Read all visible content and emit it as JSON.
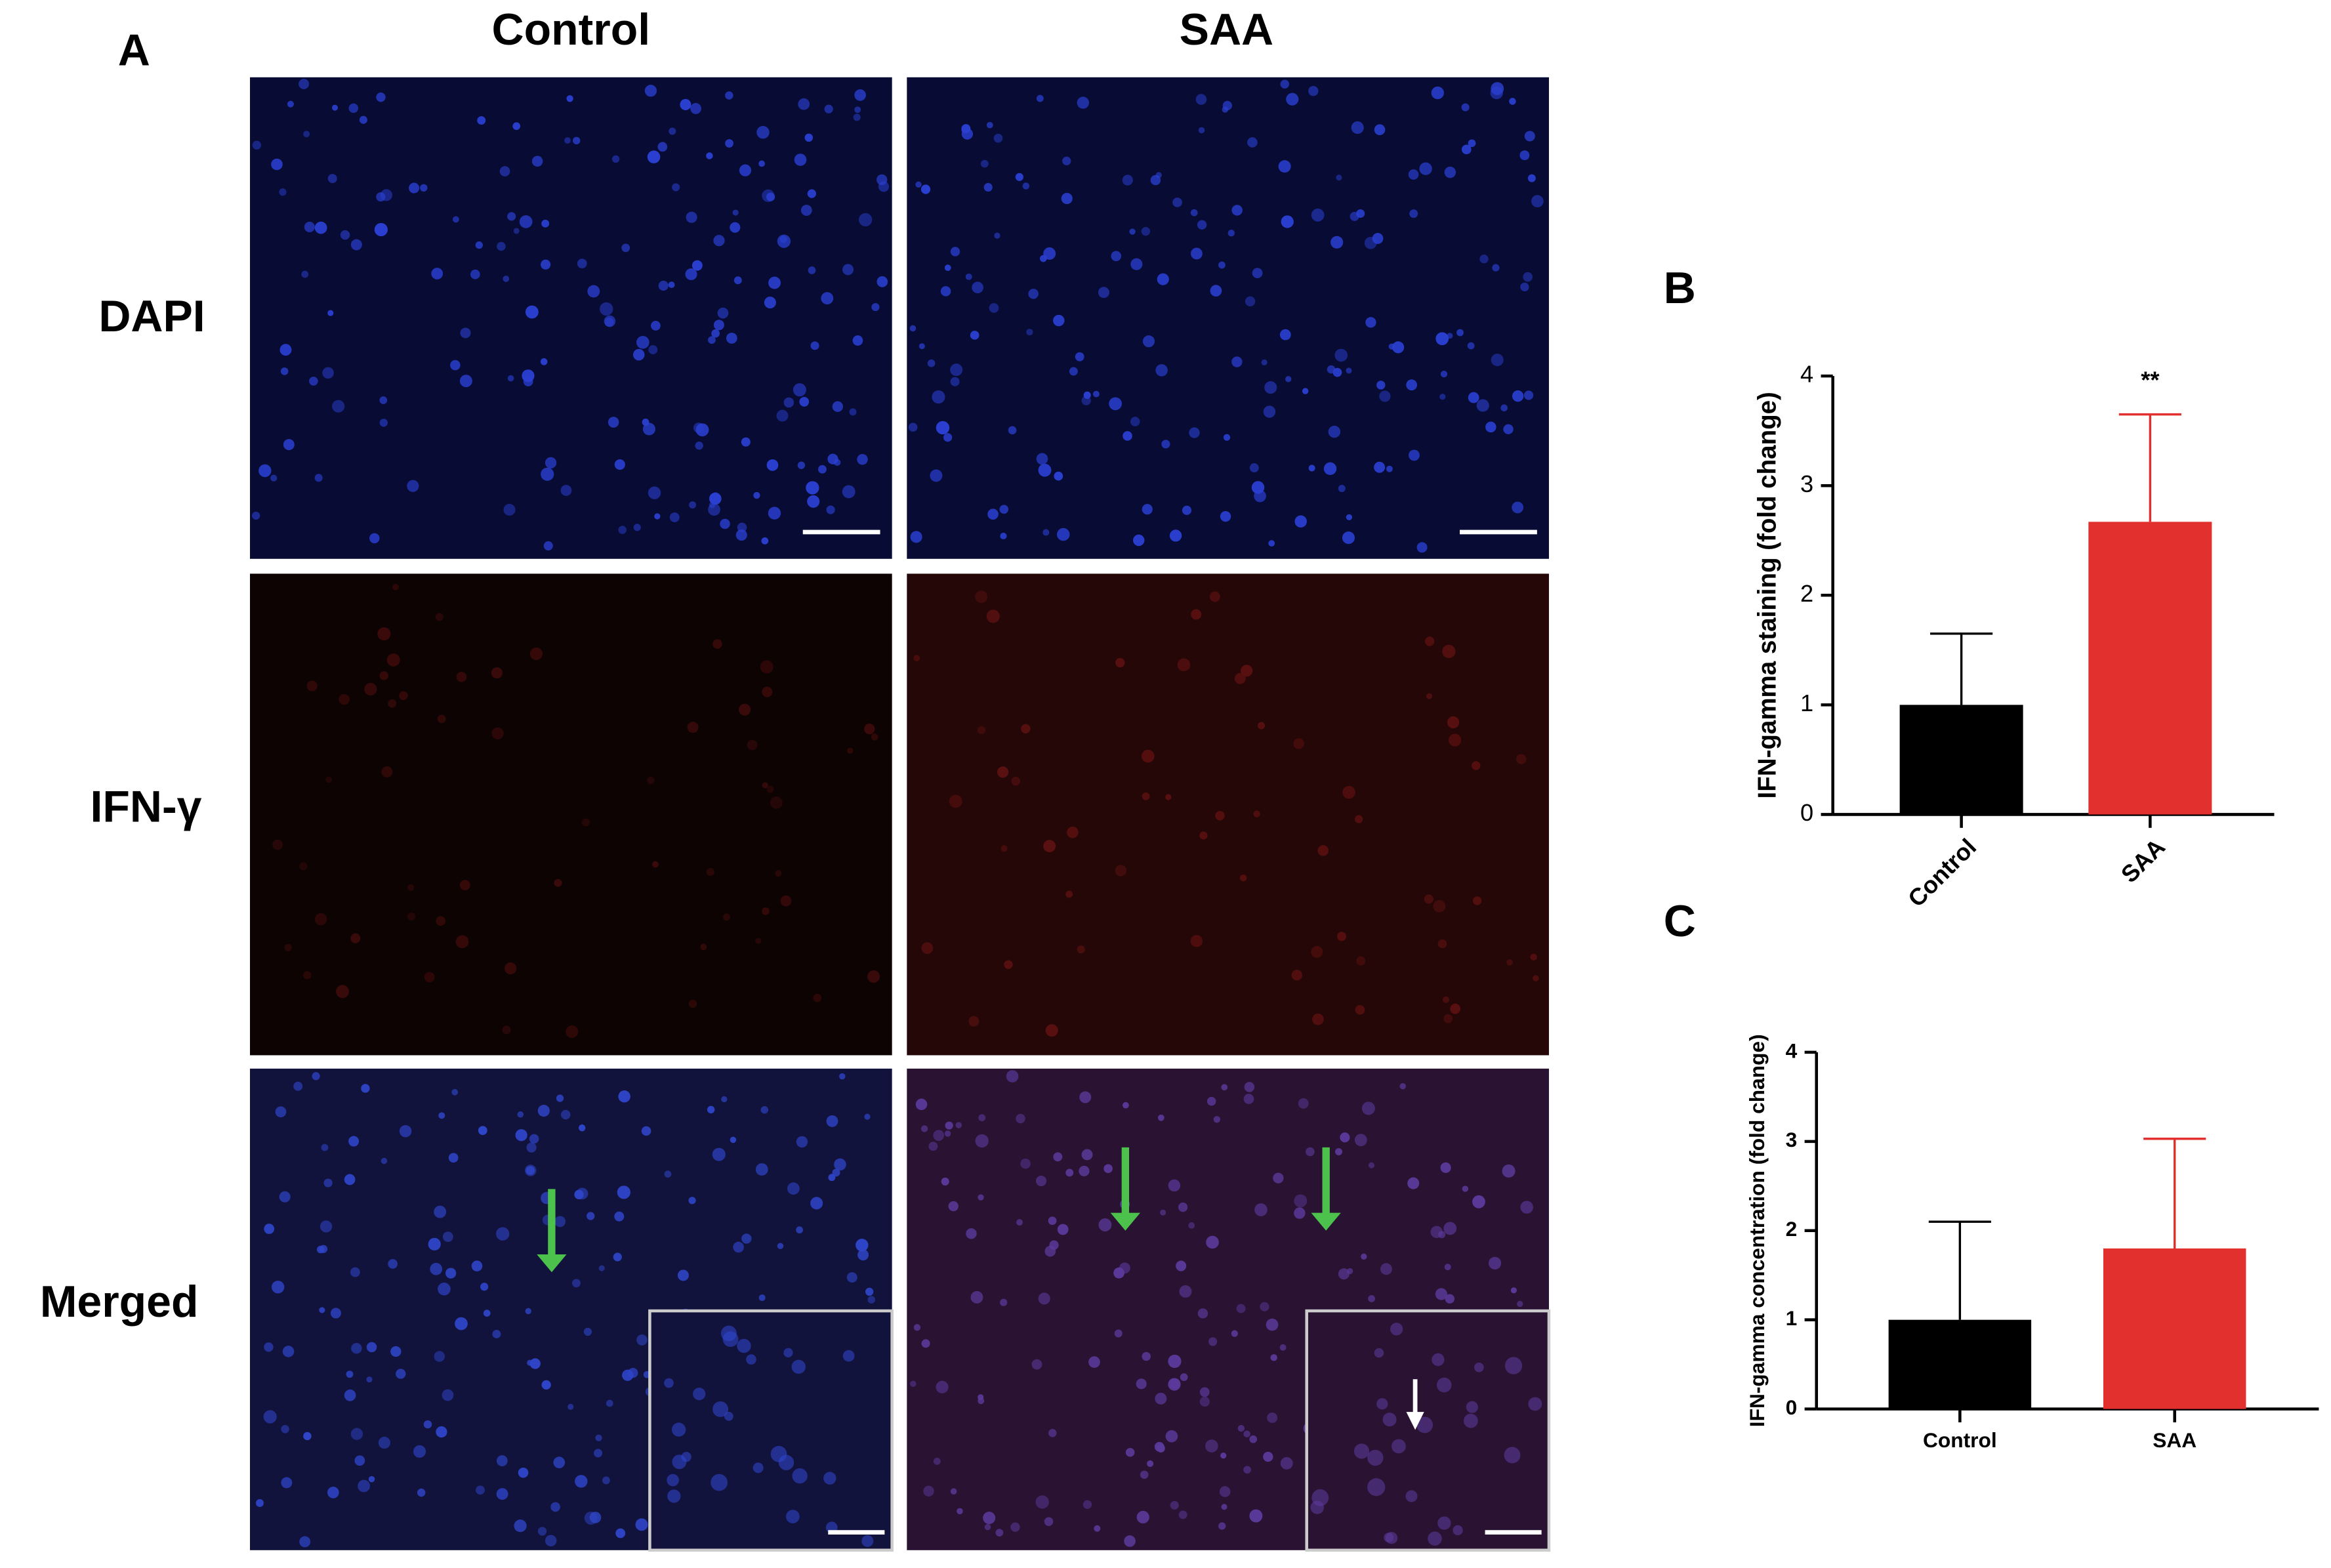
{
  "figure": {
    "panel": "A",
    "columns": [
      "Control",
      "SAA"
    ],
    "rows": [
      "DAPI",
      "IFN-γ",
      "Merged"
    ]
  },
  "chart_data": [
    {
      "type": "bar",
      "panel": "B",
      "ylabel": "IFN-gamma staining (fold change)",
      "categories": [
        "Control",
        "SAA"
      ],
      "values": [
        1.0,
        2.67
      ],
      "errors": [
        0.65,
        0.98
      ],
      "colors": [
        "#000000",
        "#e2302f"
      ],
      "significance": [
        null,
        "**"
      ],
      "ylim": [
        0,
        4
      ],
      "yticks": [
        0,
        1,
        2,
        3,
        4
      ],
      "xtick_rotation": -45
    },
    {
      "type": "bar",
      "panel": "C",
      "ylabel": "IFN-gamma concentration (fold change)",
      "categories": [
        "Control",
        "SAA"
      ],
      "values": [
        1.0,
        1.8
      ],
      "errors": [
        1.1,
        1.23
      ],
      "colors": [
        "#000000",
        "#e2302f"
      ],
      "significance": [
        null,
        null
      ],
      "ylim": [
        0,
        4
      ],
      "yticks": [
        0,
        1,
        2,
        3,
        4
      ],
      "xtick_rotation": 0
    }
  ]
}
